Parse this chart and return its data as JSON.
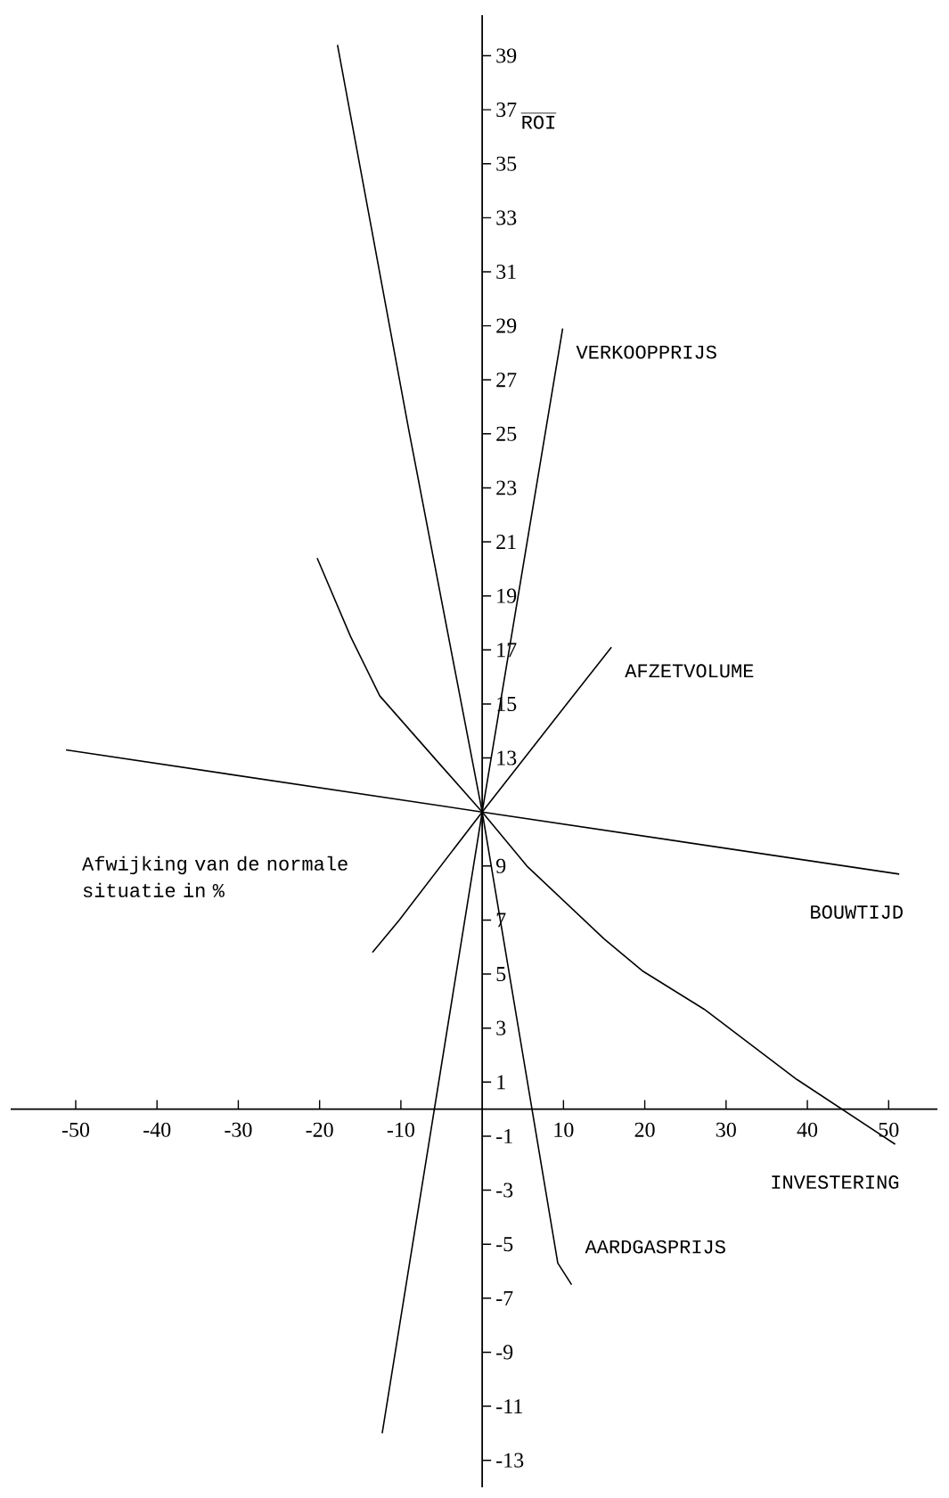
{
  "chart_data": {
    "type": "line",
    "xlabel": "Afwijking van de normale situatie in %",
    "ylabel": "ROI",
    "xlim": [
      -58,
      56
    ],
    "ylim": [
      -14,
      40.5
    ],
    "xticks": [
      -50,
      -40,
      -30,
      -20,
      -10,
      10,
      20,
      30,
      40,
      50
    ],
    "yticks": [
      -13,
      -11,
      -9,
      -7,
      -5,
      -3,
      -1,
      1,
      3,
      5,
      7,
      9,
      13,
      15,
      17,
      19,
      21,
      23,
      25,
      27,
      29,
      31,
      33,
      35,
      37,
      39
    ],
    "line_style": "solid",
    "series": [
      {
        "name": "VERKOOPPRIJS",
        "color": "#000000",
        "x": [
          -12.3,
          0,
          9.9
        ],
        "values": [
          -12.0,
          11,
          28.9
        ]
      },
      {
        "name": "AFZETVOLUME",
        "color": "#000000",
        "x": [
          -13.5,
          -10.2,
          0,
          10.4,
          15.9
        ],
        "values": [
          5.8,
          7.0,
          11,
          15.0,
          17.1
        ]
      },
      {
        "name": "BOUWTIJD",
        "color": "#000000",
        "x": [
          -51.2,
          0,
          51.3
        ],
        "values": [
          13.3,
          11,
          8.7
        ]
      },
      {
        "name": "INVESTERING",
        "color": "#000000",
        "x": [
          -20.3,
          -16.2,
          -12.6,
          -5.3,
          0,
          5.5,
          15.0,
          19.8,
          27.3,
          38.7,
          50.8
        ],
        "values": [
          20.4,
          17.5,
          15.3,
          12.8,
          11,
          9.0,
          6.3,
          5.1,
          3.7,
          1.1,
          -1.3
        ]
      },
      {
        "name": "AARDGASPRIJS",
        "color": "#000000",
        "x": [
          -17.8,
          -9.0,
          0,
          9.3,
          11.0
        ],
        "values": [
          39.4,
          25.1,
          11,
          -5.7,
          -6.5
        ]
      }
    ]
  }
}
